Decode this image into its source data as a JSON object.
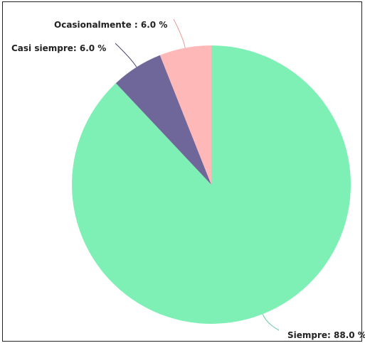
{
  "chart_data": {
    "type": "pie",
    "slices": [
      {
        "name": "Siempre",
        "value": 88.0,
        "color": "#7ff0b5",
        "label": "Siempre: 88.0 %"
      },
      {
        "name": "Casi siempre",
        "value": 6.0,
        "color": "#6f6699",
        "label": "Casi siempre: 6.0 %"
      },
      {
        "name": "Ocasionalmente",
        "value": 6.0,
        "color": "#ffb8b8",
        "label": "Ocasionalmente : 6.0 %"
      }
    ],
    "legend": false
  }
}
